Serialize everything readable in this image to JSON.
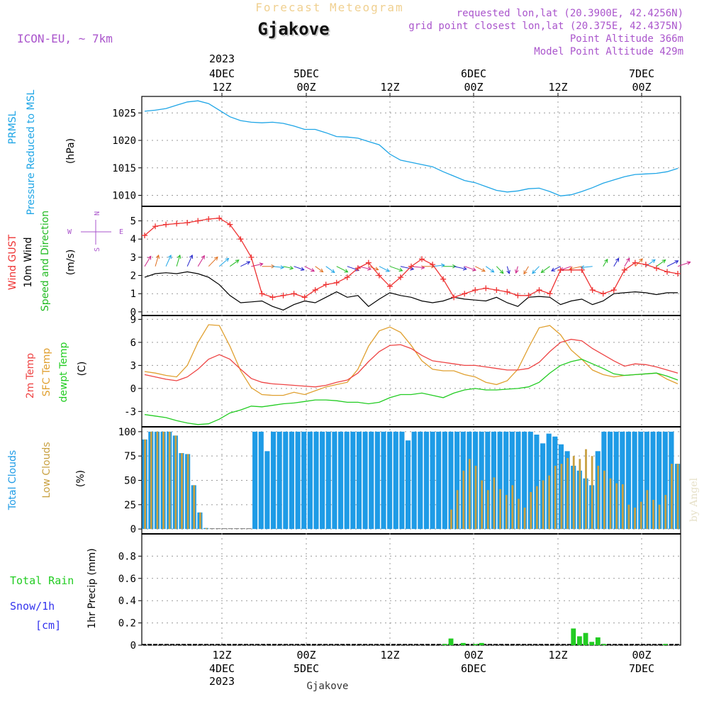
{
  "header": {
    "product_title": "Forecast Meteogram",
    "location": "Gjakove",
    "model": "ICON-EU, ~ 7km",
    "requested": "requested lon,lat (20.3900E, 42.4256N)",
    "grid_point": "grid point closest lon,lat (20.375E, 42.4375N)",
    "point_alt": "Point Altitude 366m",
    "model_alt": "Model Point Altitude 429m",
    "footer_location": "Gjakove",
    "watermark": "by Angel"
  },
  "colors": {
    "pressure": "#1ea5e6",
    "gust": "#ee3333",
    "wind": "#000000",
    "dir": "#22bb22",
    "temp": "#ee4444",
    "sfc": "#e0a030",
    "dewpt": "#22cc22",
    "total_clouds": "#1e9be6",
    "low_clouds": "#c8a040",
    "rain": "#22cc22",
    "snow": "#3333ee",
    "purple": "#aa55cc"
  },
  "top_axis": [
    {
      "l1": "2023",
      "l2": "4DEC",
      "l3": "12Z"
    },
    {
      "l1": "",
      "l2": "5DEC",
      "l3": "00Z"
    },
    {
      "l1": "",
      "l2": "",
      "l3": "12Z"
    },
    {
      "l1": "",
      "l2": "6DEC",
      "l3": "00Z"
    },
    {
      "l1": "",
      "l2": "",
      "l3": "12Z"
    },
    {
      "l1": "",
      "l2": "7DEC",
      "l3": "00Z"
    }
  ],
  "bottom_axis": [
    {
      "l1": "12Z",
      "l2": "4DEC",
      "l3": "2023"
    },
    {
      "l1": "00Z",
      "l2": "5DEC",
      "l3": ""
    },
    {
      "l1": "12Z",
      "l2": "",
      "l3": ""
    },
    {
      "l1": "00Z",
      "l2": "6DEC",
      "l3": ""
    },
    {
      "l1": "12Z",
      "l2": "",
      "l3": ""
    },
    {
      "l1": "00Z",
      "l2": "7DEC",
      "l3": ""
    }
  ],
  "chart_data": [
    {
      "type": "line",
      "id": "pressure",
      "label": "PRMSL",
      "label2": "Pressure Reduced to MSL",
      "unit": "(hPa)",
      "ylim": [
        1008,
        1028
      ],
      "yticks": [
        "1025",
        "1020",
        "1015",
        "1010"
      ],
      "series": [
        {
          "name": "PRMSL",
          "values": [
            1025.3,
            1025.5,
            1025.8,
            1026.4,
            1027.0,
            1027.2,
            1026.7,
            1025.5,
            1024.3,
            1023.6,
            1023.3,
            1023.2,
            1023.3,
            1023.1,
            1022.6,
            1022.0,
            1022.0,
            1021.4,
            1020.7,
            1020.6,
            1020.4,
            1019.8,
            1019.2,
            1017.5,
            1016.4,
            1016.0,
            1015.6,
            1015.2,
            1014.3,
            1013.5,
            1012.7,
            1012.3,
            1011.6,
            1010.9,
            1010.6,
            1010.8,
            1011.2,
            1011.3,
            1010.7,
            1009.9,
            1010.1,
            1010.7,
            1011.4,
            1012.2,
            1012.8,
            1013.4,
            1013.8,
            1013.9,
            1014.0,
            1014.3,
            1014.9
          ]
        }
      ]
    },
    {
      "type": "line",
      "id": "wind",
      "label": "Wind GUST",
      "label2": "10m Wind",
      "label3": "Speed and Direction",
      "unit": "(m/s)",
      "compass": {
        "n": "N",
        "s": "S",
        "e": "E",
        "w": "W"
      },
      "ylim": [
        -0.2,
        5.8
      ],
      "yticks": [
        "5",
        "4",
        "3",
        "2",
        "1",
        "0"
      ],
      "series": [
        {
          "name": "Wind GUST",
          "values": [
            4.2,
            4.7,
            4.8,
            4.85,
            4.9,
            5.0,
            5.1,
            5.15,
            4.8,
            4.0,
            3.0,
            1.0,
            0.8,
            0.9,
            1.0,
            0.8,
            1.2,
            1.5,
            1.6,
            1.9,
            2.4,
            2.7,
            2.0,
            1.4,
            1.9,
            2.5,
            2.9,
            2.6,
            1.8,
            0.8,
            1.0,
            1.2,
            1.3,
            1.2,
            1.1,
            0.9,
            0.9,
            1.2,
            1.0,
            2.3,
            2.3,
            2.3,
            1.2,
            1.0,
            1.2,
            2.3,
            2.7,
            2.6,
            2.4,
            2.2,
            2.1
          ]
        },
        {
          "name": "10m Wind",
          "values": [
            1.9,
            2.1,
            2.15,
            2.1,
            2.2,
            2.1,
            1.9,
            1.5,
            0.9,
            0.5,
            0.55,
            0.6,
            0.3,
            0.1,
            0.4,
            0.6,
            0.5,
            0.8,
            1.1,
            0.8,
            0.9,
            0.3,
            0.7,
            1.05,
            0.9,
            0.8,
            0.6,
            0.5,
            0.6,
            0.8,
            0.7,
            0.65,
            0.6,
            0.8,
            0.5,
            0.3,
            0.8,
            0.85,
            0.8,
            0.4,
            0.6,
            0.7,
            0.4,
            0.6,
            1.0,
            1.05,
            1.1,
            1.05,
            0.95,
            1.05,
            1.05
          ]
        },
        {
          "name": "Direction (deg)",
          "values": [
            200,
            190,
            195,
            190,
            195,
            200,
            210,
            215,
            220,
            230,
            250,
            270,
            280,
            290,
            300,
            310,
            320,
            320,
            310,
            300,
            290,
            300,
            310,
            300,
            290,
            280,
            270,
            260,
            270,
            290,
            300,
            310,
            320,
            330,
            350,
            10,
            20,
            30,
            40,
            50,
            60,
            70,
            80,
            200,
            200,
            200,
            210,
            220,
            220,
            230,
            240
          ]
        }
      ]
    },
    {
      "type": "line",
      "id": "temperature",
      "label": "2m Temp",
      "label2": "SFC Temp",
      "label3": "dewpt Temp",
      "unit": "(C)",
      "ylim": [
        -5,
        9.5
      ],
      "yticks": [
        "9",
        "6",
        "3",
        "0",
        "-3"
      ],
      "series": [
        {
          "name": "2m Temp",
          "values": [
            1.8,
            1.5,
            1.2,
            1.0,
            1.5,
            2.5,
            3.8,
            4.4,
            3.8,
            2.5,
            1.3,
            0.8,
            0.6,
            0.5,
            0.4,
            0.3,
            0.2,
            0.4,
            0.8,
            1.1,
            2.0,
            3.5,
            4.8,
            5.6,
            5.7,
            5.2,
            4.3,
            3.6,
            3.4,
            3.2,
            3.0,
            3.0,
            2.8,
            2.6,
            2.4,
            2.4,
            2.6,
            3.4,
            4.8,
            6.0,
            6.4,
            6.2,
            5.2,
            4.4,
            3.6,
            2.9,
            3.2,
            3.1,
            2.8,
            2.4,
            2.0
          ]
        },
        {
          "name": "SFC Temp",
          "values": [
            2.2,
            2.0,
            1.7,
            1.5,
            3.0,
            6.0,
            8.3,
            8.2,
            5.5,
            2.3,
            0.1,
            -0.8,
            -0.9,
            -0.9,
            -0.5,
            -0.8,
            -0.3,
            0.2,
            0.5,
            0.8,
            2.5,
            5.5,
            7.5,
            8.0,
            7.3,
            5.6,
            3.6,
            2.5,
            2.3,
            2.3,
            1.8,
            1.5,
            0.8,
            0.5,
            1.0,
            2.5,
            5.3,
            7.9,
            8.2,
            7.0,
            5.0,
            3.8,
            2.4,
            1.8,
            1.5,
            1.7,
            1.8,
            1.9,
            2.0,
            1.2,
            0.6
          ]
        },
        {
          "name": "dewpt Temp",
          "values": [
            -3.4,
            -3.6,
            -3.8,
            -4.2,
            -4.5,
            -4.7,
            -4.6,
            -4.0,
            -3.2,
            -2.8,
            -2.3,
            -2.4,
            -2.2,
            -2.0,
            -1.9,
            -1.7,
            -1.5,
            -1.5,
            -1.6,
            -1.8,
            -1.8,
            -2.0,
            -1.8,
            -1.2,
            -0.8,
            -0.8,
            -0.6,
            -0.9,
            -1.2,
            -0.6,
            -0.2,
            0.0,
            -0.2,
            -0.2,
            -0.1,
            0.0,
            0.2,
            0.8,
            2.0,
            3.0,
            3.5,
            3.8,
            3.2,
            2.6,
            1.9,
            1.7,
            1.8,
            1.9,
            2.0,
            1.6,
            1.1
          ]
        }
      ]
    },
    {
      "type": "bar",
      "id": "clouds",
      "label": "Total Clouds",
      "label2": "Low Clouds",
      "unit": "(%)",
      "ylim": [
        -5,
        105
      ],
      "yticks": [
        "100",
        "75",
        "50",
        "25",
        "0"
      ],
      "series": [
        {
          "name": "Total Clouds",
          "values": [
            92,
            100,
            100,
            100,
            100,
            96,
            78,
            77,
            45,
            17,
            1,
            0,
            0,
            0,
            0,
            0,
            0,
            0,
            100,
            100,
            80,
            100,
            100,
            100,
            100,
            100,
            100,
            100,
            100,
            100,
            100,
            100,
            100,
            100,
            100,
            100,
            100,
            100,
            100,
            100,
            100,
            100,
            100,
            91,
            100,
            100,
            100,
            100,
            100,
            100,
            100,
            100,
            100,
            100,
            100,
            100,
            100,
            100,
            100,
            100,
            100,
            100,
            100,
            100,
            97,
            88,
            98,
            95,
            87,
            80,
            65,
            60,
            52,
            45,
            80,
            100,
            100,
            100,
            100,
            100,
            100,
            100,
            100,
            100,
            100,
            100,
            100,
            67
          ]
        },
        {
          "name": "Low Clouds",
          "values": [
            92,
            100,
            100,
            100,
            100,
            96,
            78,
            77,
            45,
            17,
            1,
            0,
            0,
            0,
            0,
            0,
            0,
            0,
            0,
            0,
            0,
            0,
            0,
            0,
            0,
            0,
            0,
            0,
            0,
            0,
            0,
            0,
            0,
            0,
            0,
            0,
            0,
            0,
            0,
            0,
            0,
            0,
            0,
            0,
            0,
            0,
            0,
            0,
            0,
            0,
            20,
            40,
            60,
            72,
            65,
            50,
            40,
            53,
            41,
            35,
            45,
            31,
            22,
            38,
            44,
            50,
            55,
            65,
            67,
            73,
            75,
            72,
            82,
            75,
            65,
            60,
            52,
            47,
            46,
            25,
            22,
            28,
            40,
            30,
            25,
            35,
            67,
            67
          ]
        }
      ]
    },
    {
      "type": "bar",
      "id": "precip",
      "label": "Total Rain",
      "label2": "Snow/1h",
      "label3": "[cm]",
      "unit": "1hr Precip (mm)",
      "ylim": [
        0,
        1
      ],
      "yticks": [
        "0.8",
        "0.6",
        "0.4",
        "0.2",
        "0"
      ],
      "series": [
        {
          "name": "Total Rain",
          "values": [
            0,
            0,
            0,
            0,
            0,
            0,
            0,
            0,
            0,
            0,
            0,
            0,
            0,
            0,
            0,
            0,
            0,
            0,
            0,
            0,
            0,
            0,
            0,
            0,
            0,
            0,
            0,
            0,
            0,
            0,
            0,
            0,
            0,
            0,
            0,
            0,
            0,
            0,
            0,
            0,
            0,
            0,
            0,
            0,
            0,
            0,
            0,
            0,
            0,
            0.01,
            0.06,
            0,
            0.02,
            0,
            0.01,
            0.02,
            0,
            0,
            0,
            0,
            0,
            0,
            0,
            0,
            0,
            0,
            0,
            0,
            0,
            0,
            0.15,
            0.08,
            0.11,
            0.03,
            0.07,
            0.01,
            0,
            0,
            0,
            0,
            0,
            0,
            0,
            0,
            0,
            0.01,
            0,
            0
          ]
        },
        {
          "name": "Snow/1h",
          "values": [
            0,
            0,
            0,
            0,
            0,
            0,
            0,
            0,
            0,
            0,
            0,
            0,
            0,
            0,
            0,
            0,
            0,
            0,
            0,
            0,
            0,
            0,
            0,
            0,
            0,
            0,
            0,
            0,
            0,
            0,
            0,
            0,
            0,
            0,
            0,
            0,
            0,
            0,
            0,
            0,
            0,
            0,
            0,
            0,
            0,
            0,
            0,
            0,
            0,
            0,
            0,
            0,
            0,
            0,
            0,
            0,
            0,
            0,
            0,
            0,
            0,
            0,
            0,
            0,
            0,
            0,
            0,
            0,
            0,
            0,
            0,
            0,
            0,
            0,
            0,
            0,
            0,
            0,
            0,
            0,
            0,
            0,
            0,
            0,
            0,
            0,
            0,
            0
          ]
        }
      ]
    }
  ]
}
